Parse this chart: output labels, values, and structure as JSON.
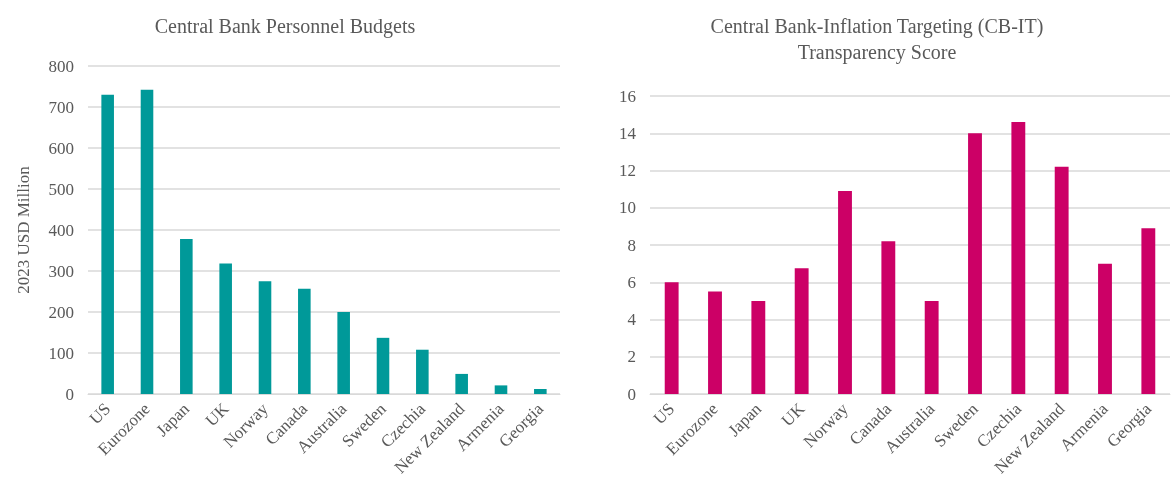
{
  "chart_data": [
    {
      "type": "bar",
      "title": "Central Bank Personnel Budgets",
      "ylabel": "2023 USD Million",
      "categories": [
        "US",
        "Eurozone",
        "Japan",
        "UK",
        "Norway",
        "Canada",
        "Australia",
        "Sweden",
        "Czechia",
        "New Zealand",
        "Armenia",
        "Georgia"
      ],
      "values": [
        730,
        742,
        378,
        318,
        275,
        257,
        200,
        137,
        108,
        49,
        21,
        12
      ],
      "color": "#009999",
      "ylim": [
        0,
        800
      ],
      "yticks": [
        0,
        100,
        200,
        300,
        400,
        500,
        600,
        700,
        800
      ],
      "grid": "y"
    },
    {
      "type": "bar",
      "title": "Central Bank-Inflation Targeting (CB-IT)\nTransparency Score",
      "categories": [
        "US",
        "Eurozone",
        "Japan",
        "UK",
        "Norway",
        "Canada",
        "Australia",
        "Sweden",
        "Czechia",
        "New Zealand",
        "Armenia",
        "Georgia"
      ],
      "values": [
        6,
        5.5,
        5,
        6.75,
        10.9,
        8.2,
        5,
        14,
        14.6,
        12.2,
        7,
        8.9
      ],
      "color": "#cc0066",
      "ylim": [
        0,
        16
      ],
      "yticks": [
        0,
        2,
        4,
        6,
        8,
        10,
        12,
        14,
        16
      ],
      "grid": "y"
    }
  ]
}
